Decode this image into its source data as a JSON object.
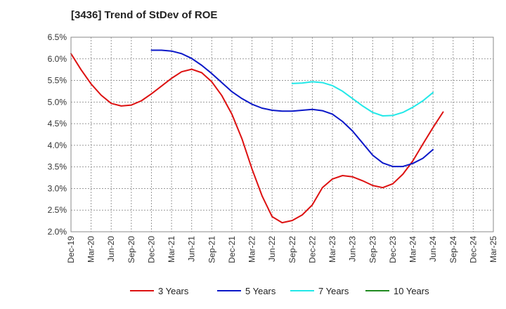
{
  "chart_data": {
    "type": "line",
    "title": "[3436]  Trend of StDev of ROE",
    "xlabel": "",
    "ylabel": "",
    "x_ticks": [
      "Dec-19",
      "Mar-20",
      "Jun-20",
      "Sep-20",
      "Dec-20",
      "Mar-21",
      "Jun-21",
      "Sep-21",
      "Dec-21",
      "Mar-22",
      "Jun-22",
      "Sep-22",
      "Dec-22",
      "Mar-23",
      "Jun-23",
      "Sep-23",
      "Dec-23",
      "Mar-24",
      "Jun-24",
      "Sep-24",
      "Dec-24",
      "Mar-25"
    ],
    "y_ticks": [
      "6.5%",
      "6.0%",
      "5.5%",
      "5.0%",
      "4.5%",
      "4.0%",
      "3.5%",
      "3.0%",
      "2.5%",
      "2.0%"
    ],
    "ylim": [
      2.0,
      6.5
    ],
    "grid": true,
    "legend_position": "bottom",
    "series": [
      {
        "name": "3 Years",
        "color": "#dd1111",
        "values": [
          6.12,
          5.75,
          5.42,
          5.16,
          4.97,
          4.91,
          4.93,
          5.03,
          5.19,
          5.37,
          5.55,
          5.7,
          5.76,
          5.68,
          5.47,
          5.15,
          4.72,
          4.15,
          3.45,
          2.83,
          2.35,
          2.21,
          2.26,
          2.39,
          2.62,
          3.02,
          3.22,
          3.3,
          3.27,
          3.18,
          3.07,
          3.02,
          3.11,
          3.33,
          3.64,
          4.03,
          4.41,
          4.77
        ]
      },
      {
        "name": "5 Years",
        "color": "#0a17c8",
        "values": [
          null,
          null,
          null,
          null,
          null,
          null,
          null,
          null,
          6.2,
          6.2,
          6.18,
          6.12,
          6.01,
          5.85,
          5.66,
          5.45,
          5.24,
          5.08,
          4.95,
          4.86,
          4.81,
          4.79,
          4.79,
          4.81,
          4.83,
          4.8,
          4.72,
          4.55,
          4.33,
          4.05,
          3.77,
          3.59,
          3.51,
          3.51,
          3.58,
          3.7,
          3.9
        ]
      },
      {
        "name": "7 Years",
        "color": "#22e8e8",
        "values": [
          null,
          null,
          null,
          null,
          null,
          null,
          null,
          null,
          null,
          null,
          null,
          null,
          null,
          null,
          null,
          null,
          null,
          null,
          null,
          null,
          null,
          null,
          5.43,
          5.44,
          5.47,
          5.45,
          5.38,
          5.25,
          5.08,
          4.91,
          4.76,
          4.68,
          4.69,
          4.76,
          4.88,
          5.03,
          5.22
        ]
      },
      {
        "name": "10 Years",
        "color": "#1f8a1f",
        "values": []
      }
    ]
  }
}
